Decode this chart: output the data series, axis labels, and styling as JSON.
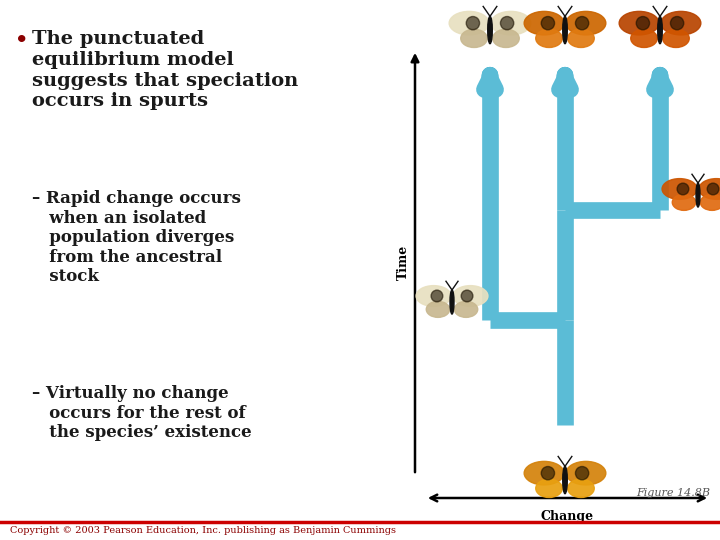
{
  "background_color": "#ffffff",
  "bullet_color": "#8b0000",
  "text_color": "#1a1a1a",
  "sub_text_color": "#1a1a1a",
  "arrow_color": "#5bbcd6",
  "axis_color": "#000000",
  "copyright_color": "#8b0000",
  "figure_label_color": "#555555",
  "figure_label": "Figure 14.8B",
  "copyright_text": "Copyright © 2003 Pearson Education, Inc. publishing as Benjamin Cummings",
  "time_label": "Time",
  "change_label": "Change"
}
